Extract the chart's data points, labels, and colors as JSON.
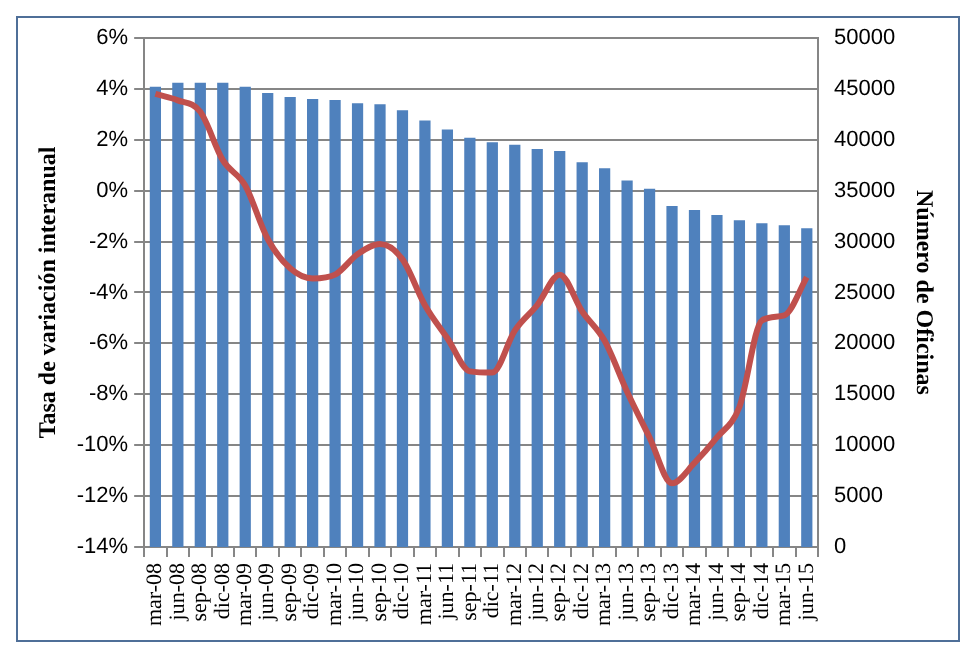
{
  "chart_data": {
    "type": "bar",
    "ylabel": "Tasa de variación interanual",
    "y2label": "Número de Oficinas",
    "categories": [
      "mar-08",
      "jun-08",
      "sep-08",
      "dic-08",
      "mar-09",
      "jun-09",
      "sep-09",
      "dic-09",
      "mar-10",
      "jun-10",
      "sep-10",
      "dic-10",
      "mar-11",
      "jun-11",
      "sep-11",
      "dic-11",
      "mar-12",
      "jun-12",
      "sep-12",
      "dic-12",
      "mar-13",
      "jun-13",
      "sep-13",
      "dic-13",
      "mar-14",
      "jun-14",
      "sep-14",
      "dic-14",
      "mar-15",
      "jun-15"
    ],
    "series": [
      {
        "axis": "y2",
        "color": "#4f81bd",
        "values": [
          45200,
          45600,
          45600,
          45600,
          45200,
          44600,
          44200,
          44000,
          43900,
          43600,
          43500,
          42900,
          41900,
          41000,
          40200,
          39750,
          39500,
          39100,
          38900,
          37800,
          37200,
          36000,
          35200,
          33500,
          33100,
          32600,
          32100,
          31800,
          31600,
          31300
        ]
      },
      {
        "type": "line",
        "axis": "y",
        "color": "#c0504d",
        "values": [
          3.8,
          3.55,
          3.1,
          1.2,
          0.2,
          -1.9,
          -3.05,
          -3.45,
          -3.3,
          -2.5,
          -2.1,
          -2.7,
          -4.5,
          -5.8,
          -7.1,
          -7.15,
          -5.5,
          -4.5,
          -3.3,
          -4.75,
          -5.9,
          -7.9,
          -9.7,
          -11.5,
          -10.7,
          -9.7,
          -8.5,
          -5.1,
          -4.9,
          -3.4
        ]
      }
    ],
    "ylim": [
      -14,
      6
    ],
    "yticks": [
      {
        "value": -14,
        "label": "-14%"
      },
      {
        "value": -12,
        "label": "-12%"
      },
      {
        "value": -10,
        "label": "-10%"
      },
      {
        "value": -8,
        "label": "-8%"
      },
      {
        "value": -6,
        "label": "-6%"
      },
      {
        "value": -4,
        "label": "-4%"
      },
      {
        "value": -2,
        "label": "-2%"
      },
      {
        "value": 0,
        "label": "0%"
      },
      {
        "value": 2,
        "label": "2%"
      },
      {
        "value": 4,
        "label": "4%"
      },
      {
        "value": 6,
        "label": "6%"
      }
    ],
    "y2lim": [
      0,
      50000
    ],
    "y2ticks": [
      0,
      5000,
      10000,
      15000,
      20000,
      25000,
      30000,
      35000,
      40000,
      45000,
      50000
    ],
    "grid": "y",
    "legend": false,
    "marker": "none",
    "line_style": "solid"
  }
}
